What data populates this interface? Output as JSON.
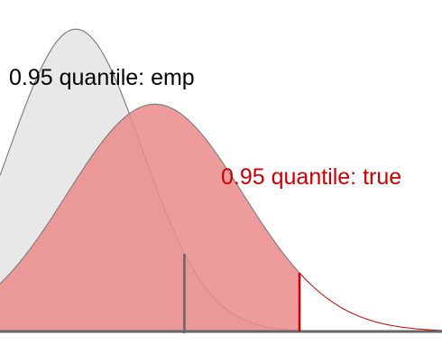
{
  "chart_data": {
    "type": "area",
    "title": "",
    "xlabel": "",
    "ylabel": "",
    "series": [
      {
        "fill_color": "#E8E8E8",
        "edge_color": "#777777",
        "mean": 0.0,
        "sd": 1.0,
        "quantile_95": 1.645,
        "quantile_line_color": "#666666"
      },
      {
        "fill_color": "#EB8A8C",
        "edge_color": "#7A7A7A",
        "tail_color": "#CC0000",
        "mean": 1.2,
        "sd": 1.33,
        "quantile_95": 3.39,
        "quantile_line_color": "#CC0000"
      }
    ],
    "annotations": [
      {
        "text": "0.95 quantile: emp",
        "color": "#000000"
      },
      {
        "text": "0.95 quantile: true",
        "color": "#CC0000"
      }
    ],
    "xlim": [
      -1.15,
      5.55
    ],
    "ylim": [
      0,
      0.41
    ],
    "baseline_color": "#666666",
    "grid": false,
    "legend": "none"
  }
}
